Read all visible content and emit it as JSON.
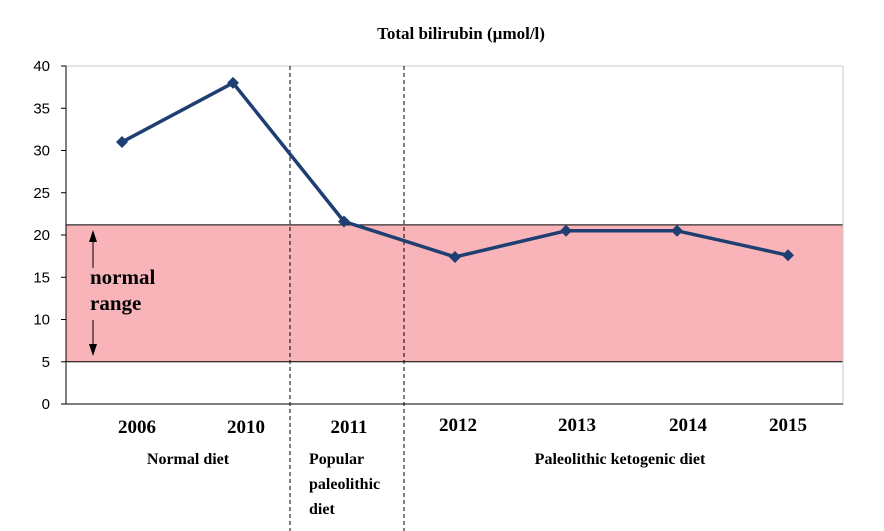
{
  "chart_data": {
    "type": "line",
    "title": "Total bilirubin  (µmol/l)",
    "categories": [
      "2006",
      "2010",
      "2011",
      "2012",
      "2013",
      "2014",
      "2015"
    ],
    "values": [
      31,
      38,
      21.6,
      17.4,
      20.5,
      20.5,
      17.6
    ],
    "ylim": [
      0,
      40
    ],
    "yticks": [
      "0",
      "5",
      "10",
      "15",
      "20",
      "25",
      "30",
      "35",
      "40"
    ],
    "series_color": "#1f3f73",
    "normal_range": {
      "low": 5,
      "high": 21.2,
      "label_line1": "normal",
      "label_line2": "range",
      "fill_color": "#f8b4b9"
    },
    "phases": [
      {
        "lines": [
          "Normal diet"
        ],
        "categories": [
          "2006",
          "2010"
        ]
      },
      {
        "lines": [
          "Popular",
          "paleolithic",
          "diet"
        ],
        "categories": [
          "2011"
        ]
      },
      {
        "lines": [
          "Paleolithic ketogenic diet"
        ],
        "categories": [
          "2012",
          "2013",
          "2014",
          "2015"
        ]
      }
    ],
    "grid": false,
    "legend": "none"
  }
}
